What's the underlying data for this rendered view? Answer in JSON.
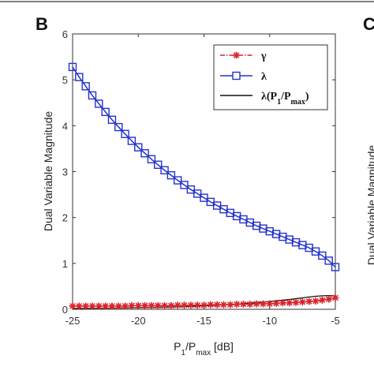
{
  "panel_labels": {
    "left": "B",
    "right": "C"
  },
  "right_panel_ylabel_fragment": "Dual Variable Magnitude",
  "colors": {
    "gamma": "#d9232a",
    "lambda": "#2433c8",
    "lambda_ratio": "#111111"
  },
  "chart_data": {
    "type": "line",
    "xlabel": "P1/Pmax [dB]",
    "ylabel": "Dual Variable Magnitude",
    "xlim": [
      -25,
      -5
    ],
    "ylim": [
      0,
      6
    ],
    "xticks": [
      -25,
      -20,
      -15,
      -10,
      -5
    ],
    "yticks": [
      0,
      1,
      2,
      3,
      4,
      5,
      6
    ],
    "grid": false,
    "legend_position": "top-right",
    "x": [
      -25,
      -24.5,
      -24,
      -23.5,
      -23,
      -22.5,
      -22,
      -21.5,
      -21,
      -20.5,
      -20,
      -19.5,
      -19,
      -18.5,
      -18,
      -17.5,
      -17,
      -16.5,
      -16,
      -15.5,
      -15,
      -14.5,
      -14,
      -13.5,
      -13,
      -12.5,
      -12,
      -11.5,
      -11,
      -10.5,
      -10,
      -9.5,
      -9,
      -8.5,
      -8,
      -7.5,
      -7,
      -6.5,
      -6,
      -5.5,
      -5
    ],
    "series": [
      {
        "name": "γ",
        "legend": {
          "main": "γ",
          "sub": ""
        },
        "marker": "asterisk",
        "line": "dash-dot",
        "values": [
          0.07,
          0.07,
          0.07,
          0.07,
          0.07,
          0.07,
          0.07,
          0.07,
          0.07,
          0.08,
          0.08,
          0.08,
          0.08,
          0.08,
          0.08,
          0.08,
          0.09,
          0.09,
          0.09,
          0.09,
          0.09,
          0.1,
          0.1,
          0.1,
          0.1,
          0.11,
          0.11,
          0.11,
          0.12,
          0.12,
          0.12,
          0.13,
          0.14,
          0.14,
          0.15,
          0.16,
          0.17,
          0.18,
          0.2,
          0.22,
          0.25
        ]
      },
      {
        "name": "λ",
        "legend": {
          "main": "λ",
          "sub": ""
        },
        "marker": "square",
        "line": "solid",
        "values": [
          5.28,
          5.06,
          4.86,
          4.66,
          4.48,
          4.3,
          4.13,
          3.97,
          3.82,
          3.67,
          3.53,
          3.4,
          3.27,
          3.15,
          3.03,
          2.92,
          2.81,
          2.71,
          2.61,
          2.52,
          2.43,
          2.34,
          2.26,
          2.18,
          2.1,
          2.03,
          1.96,
          1.89,
          1.82,
          1.76,
          1.7,
          1.64,
          1.58,
          1.52,
          1.46,
          1.4,
          1.34,
          1.26,
          1.17,
          1.06,
          0.92
        ]
      },
      {
        "name": "λ(P1/Pmax)",
        "legend": {
          "main": "λ(P",
          "sub1": "1",
          "mid": "/P",
          "sub2": "max",
          "end": ")"
        },
        "marker": "none",
        "line": "solid",
        "values": [
          0.017,
          0.019,
          0.019,
          0.021,
          0.023,
          0.024,
          0.026,
          0.028,
          0.03,
          0.032,
          0.035,
          0.038,
          0.041,
          0.044,
          0.048,
          0.052,
          0.056,
          0.06,
          0.065,
          0.071,
          0.077,
          0.083,
          0.09,
          0.098,
          0.105,
          0.114,
          0.124,
          0.134,
          0.145,
          0.157,
          0.17,
          0.184,
          0.199,
          0.214,
          0.231,
          0.249,
          0.268,
          0.284,
          0.294,
          0.299,
          0.292
        ]
      }
    ]
  }
}
